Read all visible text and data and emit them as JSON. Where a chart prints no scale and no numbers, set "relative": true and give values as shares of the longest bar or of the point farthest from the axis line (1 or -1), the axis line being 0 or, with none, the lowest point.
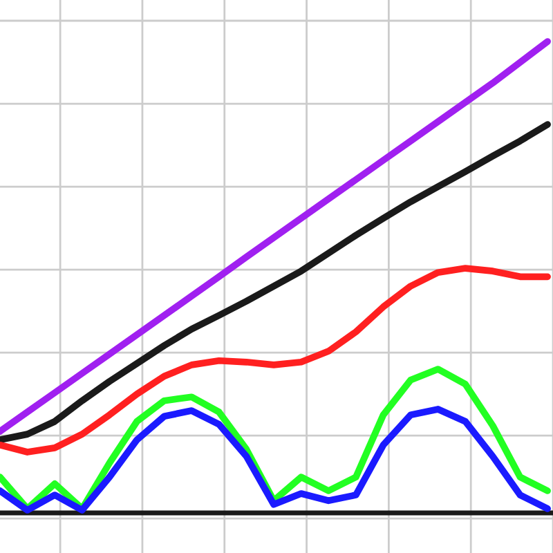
{
  "chart_data": {
    "type": "line",
    "relative": true,
    "grid": true,
    "line_style": "solid",
    "marker": "none",
    "categories": [
      null,
      null,
      null,
      null,
      null,
      null,
      null,
      null,
      null,
      null,
      null,
      null,
      null,
      null,
      null,
      null,
      null,
      null,
      null,
      null,
      null
    ],
    "series": [
      {
        "color": "#a020f0",
        "values": [
          0.173,
          0.214,
          0.255,
          0.296,
          0.337,
          0.378,
          0.419,
          0.46,
          0.501,
          0.543,
          0.584,
          0.625,
          0.666,
          0.707,
          0.748,
          0.789,
          0.83,
          0.871,
          0.912,
          0.956,
          1.0
        ]
      },
      {
        "color": "#1a1a1a",
        "values": [
          0.155,
          0.167,
          0.194,
          0.238,
          0.279,
          0.317,
          0.355,
          0.39,
          0.419,
          0.449,
          0.481,
          0.513,
          0.551,
          0.589,
          0.625,
          0.66,
          0.692,
          0.724,
          0.757,
          0.789,
          0.824
        ]
      },
      {
        "color": "#ff2020",
        "values": [
          0.144,
          0.129,
          0.138,
          0.167,
          0.208,
          0.252,
          0.29,
          0.314,
          0.323,
          0.32,
          0.314,
          0.32,
          0.343,
          0.384,
          0.437,
          0.481,
          0.51,
          0.519,
          0.513,
          0.501,
          0.501
        ]
      },
      {
        "color": "#22ff22",
        "values": [
          0.076,
          0.009,
          0.062,
          0.009,
          0.106,
          0.194,
          0.238,
          0.246,
          0.214,
          0.135,
          0.026,
          0.076,
          0.047,
          0.076,
          0.208,
          0.282,
          0.305,
          0.273,
          0.185,
          0.076,
          0.047
        ]
      },
      {
        "color": "#1a1aff",
        "values": [
          0.047,
          0.006,
          0.038,
          0.006,
          0.076,
          0.155,
          0.205,
          0.217,
          0.188,
          0.12,
          0.018,
          0.041,
          0.026,
          0.038,
          0.144,
          0.208,
          0.22,
          0.194,
          0.12,
          0.038,
          0.009
        ]
      }
    ]
  }
}
